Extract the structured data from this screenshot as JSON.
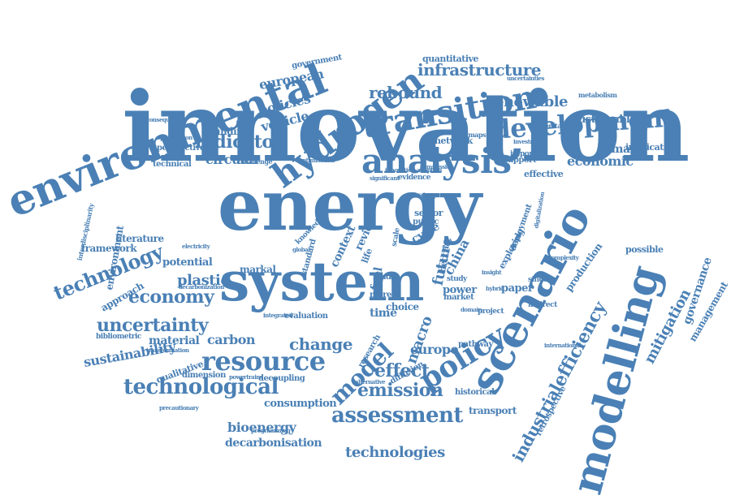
{
  "cloud": {
    "color": "#4a80b5",
    "words": [
      "innovation",
      "energy",
      "system",
      "scenario",
      "modelling",
      "environmental",
      "hydrogen",
      "analysis",
      "transition",
      "development",
      "policy",
      "model",
      "resource",
      "technological",
      "assessment",
      "emission",
      "uncertainty",
      "economy",
      "technology",
      "indicator",
      "infrastructure",
      "rebound",
      "renewable",
      "sustainable",
      "climate",
      "economic",
      "efficiency",
      "industrial",
      "mitigation",
      "management",
      "governance",
      "change",
      "carbon",
      "plastic",
      "material",
      "circular",
      "policies",
      "vehicle",
      "european",
      "government",
      "building",
      "perspective",
      "technical",
      "optimization",
      "framework",
      "literature",
      "potential",
      "markal",
      "approach",
      "sustainability",
      "qualitative",
      "bibliometric",
      "dimension",
      "powertrains",
      "decoupling",
      "precautionary",
      "consumption",
      "bioenergy",
      "decarbonisation",
      "programming",
      "technologies",
      "transport",
      "historical",
      "alternative",
      "effect",
      "macro",
      "diffusion",
      "europe",
      "implication",
      "production",
      "possible",
      "retrospective",
      "quantitative",
      "uncertainties",
      "metabolism",
      "network",
      "roadmaps",
      "support",
      "important",
      "effective",
      "project",
      "indirect",
      "sincere",
      "paper",
      "interdisciplinarity",
      "environment",
      "electricity",
      "transformation",
      "decarbonization",
      "consequential",
      "challenge",
      "innovation-adoption",
      "evidence",
      "knowledge",
      "standard",
      "sector",
      "public",
      "cycle",
      "review",
      "china",
      "future",
      "time",
      "choice",
      "more",
      "life",
      "land",
      "power",
      "market",
      "becca",
      "study",
      "hybrid",
      "insight",
      "global",
      "pathway",
      "international",
      "research",
      "integrated",
      "evaluation",
      "strategy",
      "deployment",
      "exploring",
      "context",
      "fuel",
      "scale",
      "inno4sd",
      "optimisation",
      "significant",
      "commission",
      "domain",
      "understanding",
      "investment",
      "digitalization",
      "complexity"
    ]
  }
}
